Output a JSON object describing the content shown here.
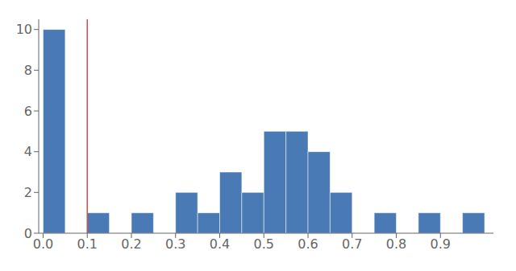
{
  "chart_data": {
    "type": "histogram",
    "bins": [
      0.0,
      0.05,
      0.1,
      0.15,
      0.2,
      0.25,
      0.3,
      0.35,
      0.4,
      0.45,
      0.5,
      0.55,
      0.6,
      0.65,
      0.7,
      0.75,
      0.8,
      0.85,
      0.9,
      0.95,
      1.0
    ],
    "values": [
      10,
      0,
      1,
      0,
      1,
      0,
      2,
      1,
      3,
      2,
      5,
      5,
      4,
      2,
      0,
      1,
      0,
      1,
      0,
      1
    ],
    "color": "#4a7ab5",
    "vlines": [
      {
        "x": 0.1,
        "color": "#d05050"
      }
    ],
    "xlim": [
      -0.01,
      1.02
    ],
    "ylim": [
      0,
      10.5
    ],
    "xticks": [
      {
        "value": 0.0,
        "label": "0.0"
      },
      0.1,
      0.2,
      0.3,
      0.4,
      0.5,
      0.6,
      0.7,
      0.8,
      0.9
    ],
    "yticks": [
      0,
      2,
      4,
      6,
      8,
      10
    ],
    "grid": false
  }
}
